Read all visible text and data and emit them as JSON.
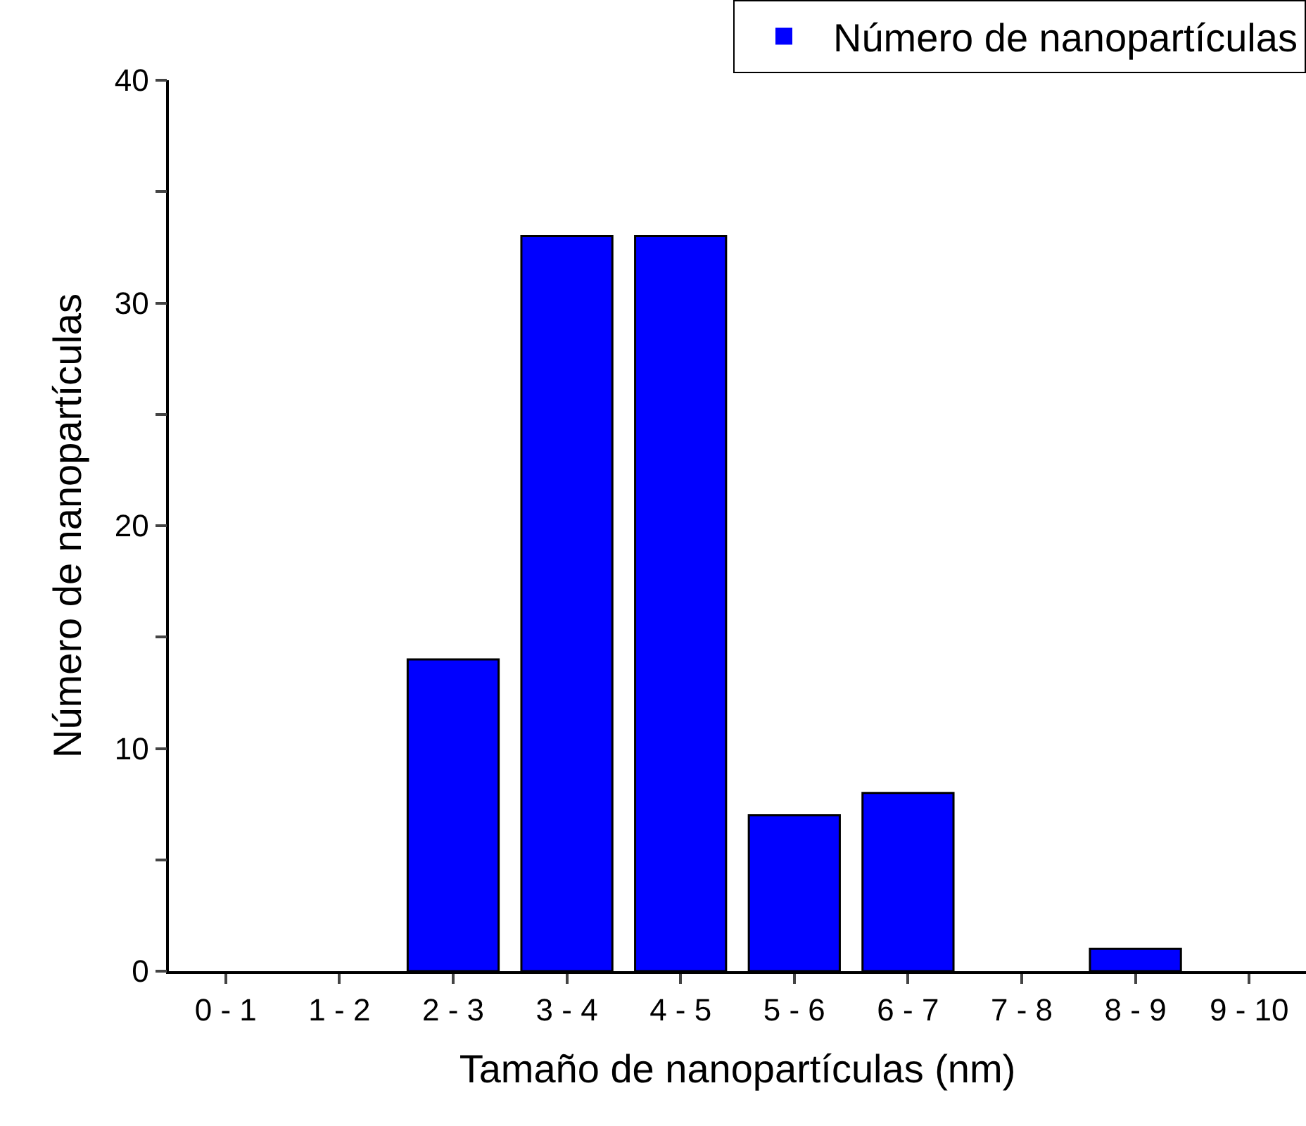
{
  "chart_data": {
    "type": "bar",
    "xlabel": "Tamaño de nanopartículas (nm)",
    "ylabel": "Número de nanopartículas",
    "categories": [
      "0 - 1",
      "1 - 2",
      "2 - 3",
      "3 - 4",
      "4 - 5",
      "5 - 6",
      "6 - 7",
      "7 - 8",
      "8 - 9",
      "9 - 10"
    ],
    "series": [
      {
        "name": "Número de nanopartículas",
        "color": "#0000ff",
        "values": [
          0,
          0,
          14,
          33,
          33,
          7,
          8,
          0,
          1,
          0
        ]
      }
    ],
    "ylim": [
      0,
      40
    ],
    "yticks": [
      0,
      {
        "value": 5,
        "label": null
      },
      10,
      {
        "value": 15,
        "label": null
      },
      20,
      {
        "value": 25,
        "label": null
      },
      30,
      {
        "value": 35,
        "label": null
      },
      40
    ],
    "grid": false,
    "legend": "top right"
  }
}
